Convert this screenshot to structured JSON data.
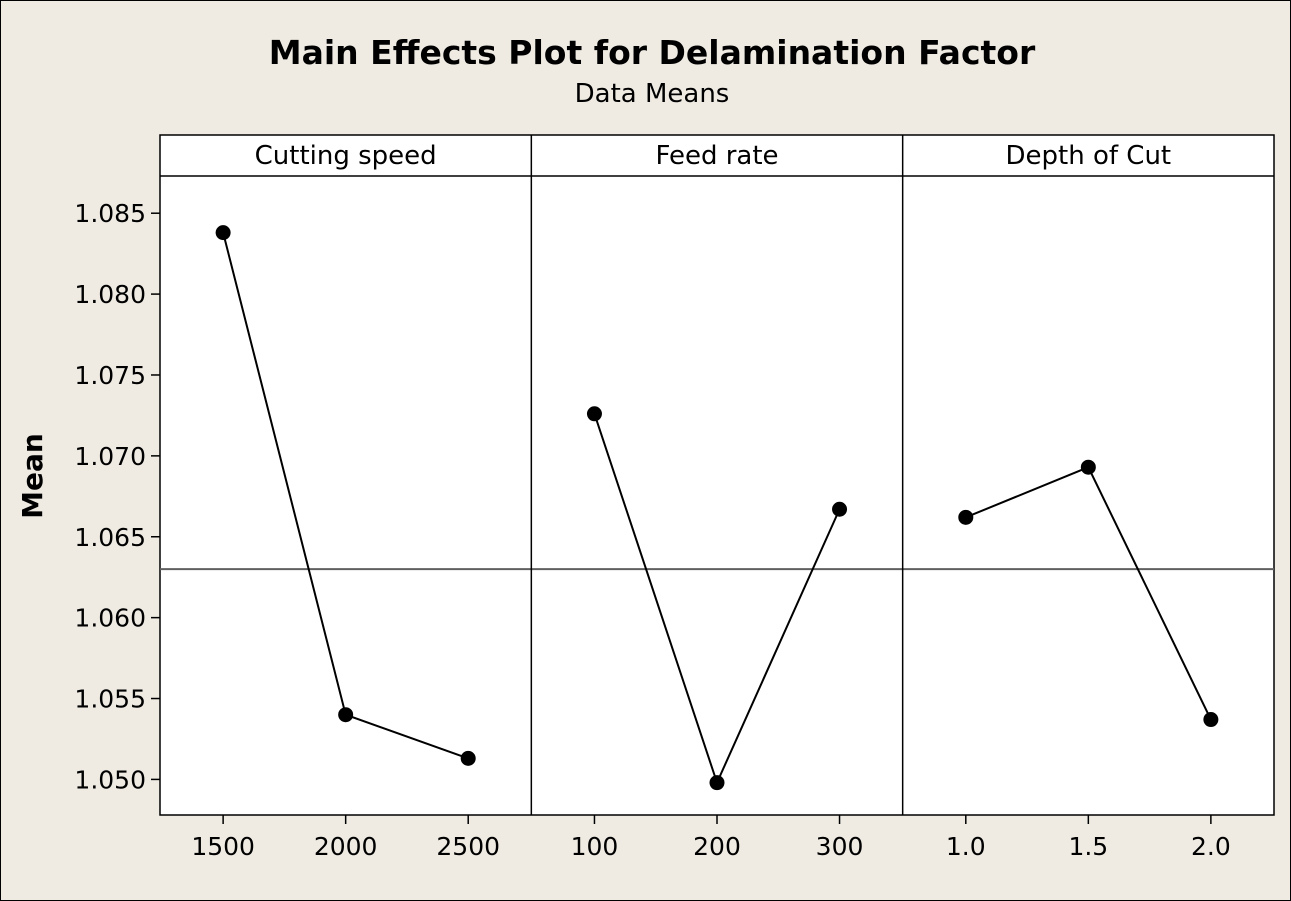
{
  "chart_data": {
    "type": "line",
    "title": "Main Effects Plot for Delamination Factor",
    "subtitle": "Data Means",
    "ylabel": "Mean",
    "ylim": [
      1.0478,
      1.0873
    ],
    "yticks": [
      "1.050",
      "1.055",
      "1.060",
      "1.065",
      "1.070",
      "1.075",
      "1.080",
      "1.085"
    ],
    "reference_mean": 1.063,
    "panels": [
      {
        "name": "Cutting speed",
        "categories": [
          "1500",
          "2000",
          "2500"
        ],
        "values": [
          1.0838,
          1.054,
          1.0513
        ]
      },
      {
        "name": "Feed rate",
        "categories": [
          "100",
          "200",
          "300"
        ],
        "values": [
          1.0726,
          1.0498,
          1.0667
        ]
      },
      {
        "name": "Depth of Cut",
        "categories": [
          "1.0",
          "1.5",
          "2.0"
        ],
        "values": [
          1.0662,
          1.0693,
          1.0537
        ]
      }
    ],
    "colors": {
      "background": "#efebe3",
      "plot": "#ffffff",
      "line": "#000000",
      "reference_line": "#606060"
    }
  }
}
